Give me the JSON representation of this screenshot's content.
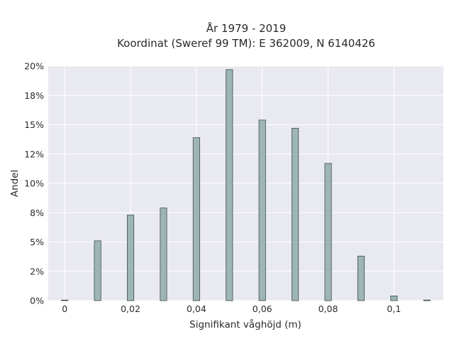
{
  "chart_data": {
    "type": "bar",
    "title_line1": "År 1979 - 2019",
    "title_line2": "Koordinat (Sweref 99 TM): E 362009, N 6140426",
    "xlabel": "Signifikant våghöjd (m)",
    "ylabel": "Andel",
    "xlim": [
      -0.005,
      0.115
    ],
    "ylim": [
      0,
      0.2
    ],
    "x_ticks": [
      0,
      0.02,
      0.04,
      0.06,
      0.08,
      0.1
    ],
    "x_tick_labels": [
      "0",
      "0,02",
      "0,04",
      "0,06",
      "0,08",
      "0,1"
    ],
    "y_ticks": [
      0,
      0.025,
      0.05,
      0.075,
      0.1,
      0.125,
      0.15,
      0.175,
      0.2
    ],
    "y_tick_labels": [
      "0%",
      "2%",
      "5%",
      "8%",
      "10%",
      "12%",
      "15%",
      "18%",
      "20%"
    ],
    "bar_width": 0.002,
    "x": [
      0,
      0.01,
      0.02,
      0.03,
      0.04,
      0.05,
      0.06,
      0.07,
      0.08,
      0.09,
      0.1,
      0.11
    ],
    "values": [
      0.0005,
      0.051,
      0.073,
      0.079,
      0.139,
      0.197,
      0.154,
      0.147,
      0.117,
      0.038,
      0.004,
      0.0005
    ],
    "grid": true,
    "background": "#e9e9f1",
    "bar_color": "#9db6b4",
    "bar_edge_color": "#3f4a4a"
  }
}
